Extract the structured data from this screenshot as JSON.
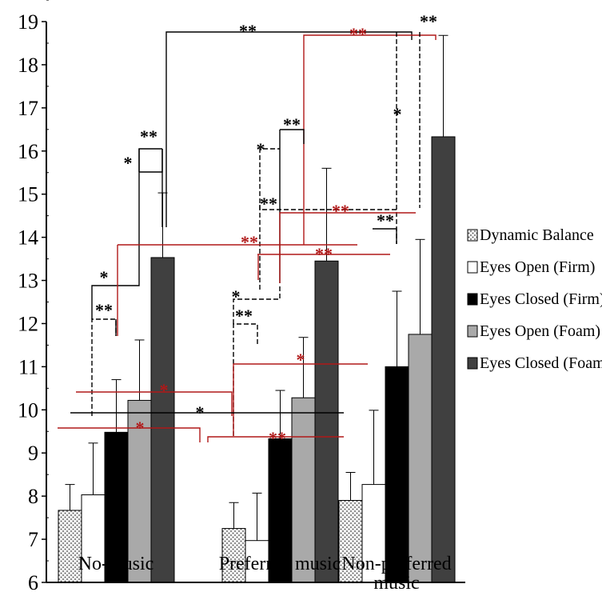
{
  "chart_data": {
    "type": "bar",
    "title": "",
    "xlabel": "",
    "ylabel": "",
    "ylim": [
      6,
      19
    ],
    "yticks": [
      6,
      7,
      8,
      9,
      10,
      11,
      12,
      13,
      14,
      15,
      16,
      17,
      18,
      19
    ],
    "categories": [
      "No-music",
      "Preferred music",
      "Non-preferred music"
    ],
    "category_lines": [
      [
        "No-music"
      ],
      [
        "Preferred music"
      ],
      [
        "Non-preferred",
        "music"
      ]
    ],
    "series": [
      {
        "name": "Dynamic Balance",
        "values": [
          7.67,
          7.25,
          7.9
        ],
        "err": [
          0.6,
          0.6,
          0.65
        ],
        "fill": "dots",
        "color": "#e8e8e8"
      },
      {
        "name": "Eyes Open (Firm)",
        "values": [
          8.03,
          6.97,
          8.27
        ],
        "err": [
          1.2,
          1.1,
          1.72
        ],
        "fill": "solid",
        "color": "#ffffff"
      },
      {
        "name": "Eyes Closed (Firm)",
        "values": [
          9.48,
          9.33,
          11.0
        ],
        "err": [
          1.22,
          1.12,
          1.75
        ],
        "fill": "solid",
        "color": "#000000"
      },
      {
        "name": "Eyes Open (Foam)",
        "values": [
          10.22,
          10.28,
          11.75
        ],
        "err": [
          1.4,
          1.4,
          2.2
        ],
        "fill": "solid",
        "color": "#a9a9a9"
      },
      {
        "name": "Eyes Closed (Foam)",
        "values": [
          13.53,
          13.45,
          16.33
        ],
        "err": [
          1.5,
          2.15,
          2.35
        ],
        "fill": "solid",
        "color": "#404040"
      }
    ],
    "legend_placement": "right",
    "grid": false,
    "annotation_colors": {
      "black": "#000000",
      "red": "#b01818"
    },
    "annotations": [
      {
        "text": "**",
        "color": "black"
      },
      {
        "text": "**",
        "color": "red"
      },
      {
        "text": "**",
        "color": "black"
      },
      {
        "text": "**",
        "color": "black"
      },
      {
        "text": "*",
        "color": "black"
      },
      {
        "text": "**",
        "color": "black"
      },
      {
        "text": "*",
        "color": "black"
      },
      {
        "text": "**",
        "color": "black"
      },
      {
        "text": "*",
        "color": "black"
      },
      {
        "text": "**",
        "color": "black"
      },
      {
        "text": "**",
        "color": "red"
      },
      {
        "text": "**",
        "color": "red"
      },
      {
        "text": "**",
        "color": "red"
      },
      {
        "text": "*",
        "color": "black"
      },
      {
        "text": "**",
        "color": "black"
      },
      {
        "text": "*",
        "color": "black"
      },
      {
        "text": "**",
        "color": "black"
      },
      {
        "text": "*",
        "color": "red"
      },
      {
        "text": "*",
        "color": "red"
      },
      {
        "text": "*",
        "color": "black"
      },
      {
        "text": "**",
        "color": "red"
      },
      {
        "text": "*",
        "color": "red"
      }
    ]
  }
}
